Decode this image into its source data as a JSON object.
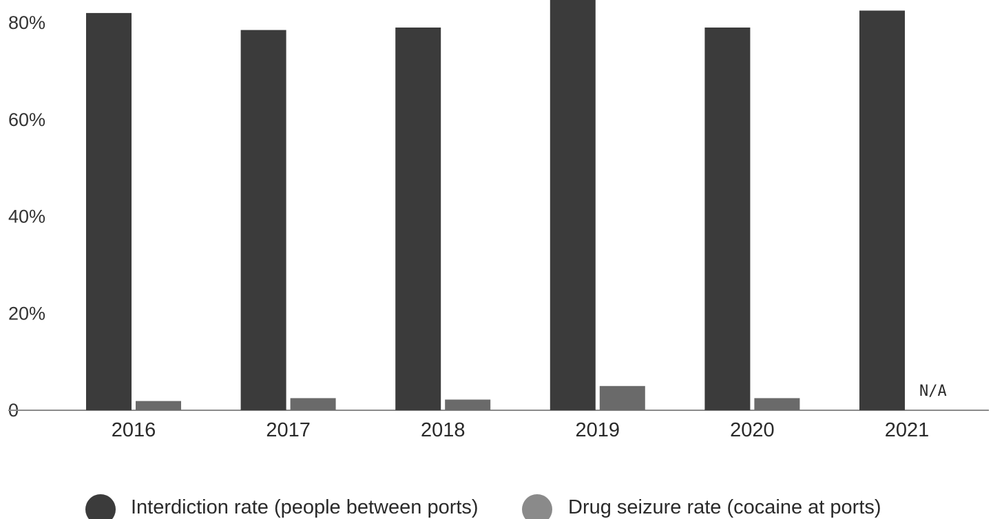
{
  "chart_data": {
    "type": "bar",
    "categories": [
      "2016",
      "2017",
      "2018",
      "2019",
      "2020",
      "2021"
    ],
    "series": [
      {
        "name": "Interdiction rate (people between ports)",
        "values": [
          82,
          78.5,
          79,
          86,
          79,
          82.5
        ],
        "color": "#3b3b3b"
      },
      {
        "name": "Drug seizure rate (cocaine at ports)",
        "values": [
          1.9,
          2.5,
          2.2,
          5,
          2.5,
          null
        ],
        "color": "#6a6a6a"
      }
    ],
    "yticks": [
      "0",
      "20%",
      "40%",
      "60%",
      "80%"
    ],
    "ylim": [
      0,
      86
    ],
    "annotations": [
      {
        "category": "2021",
        "series": 1,
        "text": "N/A"
      }
    ],
    "grid": false,
    "legend_position": "bottom-center"
  }
}
